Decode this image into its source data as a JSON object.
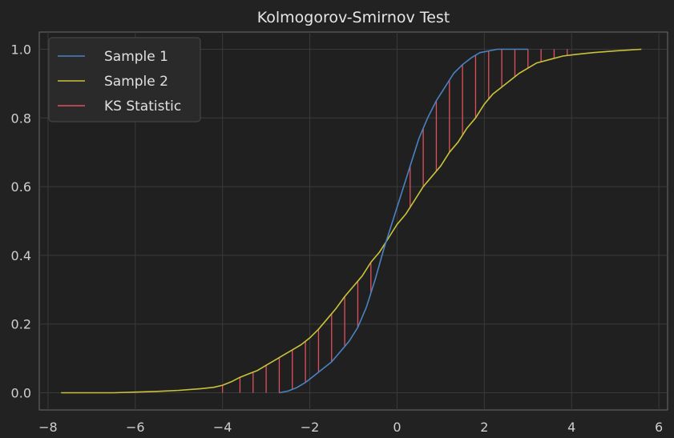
{
  "chart_data": {
    "type": "line",
    "title": "Kolmogorov-Smirnov Test",
    "xlabel": "",
    "ylabel": "",
    "xlim": [
      -8.2,
      6.2
    ],
    "ylim": [
      -0.05,
      1.05
    ],
    "x_ticks": [
      -8,
      -6,
      -4,
      -2,
      0,
      2,
      4,
      6
    ],
    "x_tick_labels": [
      "−8",
      "−6",
      "−4",
      "−2",
      "0",
      "2",
      "4",
      "6"
    ],
    "y_ticks": [
      0.0,
      0.2,
      0.4,
      0.6,
      0.8,
      1.0
    ],
    "y_tick_labels": [
      "0.0",
      "0.2",
      "0.4",
      "0.6",
      "0.8",
      "1.0"
    ],
    "grid": true,
    "legend_position": "top-left",
    "series": [
      {
        "name": "Sample 1",
        "color": "#4a82c4",
        "x": [
          -2.7,
          -2.5,
          -2.3,
          -2.1,
          -1.9,
          -1.7,
          -1.5,
          -1.3,
          -1.1,
          -0.9,
          -0.7,
          -0.5,
          -0.3,
          -0.1,
          0.1,
          0.3,
          0.5,
          0.7,
          0.9,
          1.1,
          1.3,
          1.5,
          1.7,
          1.9,
          2.1,
          2.3,
          2.5,
          2.7,
          3.0
        ],
        "y": [
          0.0,
          0.005,
          0.015,
          0.03,
          0.05,
          0.07,
          0.09,
          0.12,
          0.15,
          0.19,
          0.25,
          0.33,
          0.42,
          0.5,
          0.58,
          0.66,
          0.74,
          0.8,
          0.85,
          0.89,
          0.93,
          0.955,
          0.975,
          0.99,
          0.995,
          1.0,
          1.0,
          1.0,
          1.0
        ]
      },
      {
        "name": "Sample 2",
        "color": "#c9c23a",
        "x": [
          -7.7,
          -7.0,
          -6.5,
          -6.0,
          -5.5,
          -5.0,
          -4.5,
          -4.2,
          -4.0,
          -3.8,
          -3.6,
          -3.4,
          -3.2,
          -3.0,
          -2.8,
          -2.6,
          -2.4,
          -2.2,
          -2.0,
          -1.8,
          -1.6,
          -1.4,
          -1.2,
          -1.0,
          -0.8,
          -0.6,
          -0.4,
          -0.2,
          0.0,
          0.2,
          0.4,
          0.6,
          0.8,
          1.0,
          1.2,
          1.4,
          1.6,
          1.8,
          2.0,
          2.2,
          2.4,
          2.6,
          2.8,
          3.0,
          3.2,
          3.5,
          3.8,
          4.1,
          4.5,
          5.0,
          5.6
        ],
        "y": [
          0.0,
          0.0,
          0.0,
          0.002,
          0.004,
          0.007,
          0.012,
          0.016,
          0.022,
          0.032,
          0.045,
          0.055,
          0.065,
          0.08,
          0.095,
          0.11,
          0.125,
          0.14,
          0.16,
          0.185,
          0.215,
          0.245,
          0.28,
          0.31,
          0.34,
          0.38,
          0.41,
          0.45,
          0.49,
          0.52,
          0.56,
          0.6,
          0.63,
          0.66,
          0.7,
          0.73,
          0.77,
          0.8,
          0.84,
          0.87,
          0.89,
          0.91,
          0.93,
          0.945,
          0.96,
          0.97,
          0.98,
          0.985,
          0.99,
          0.995,
          1.0
        ]
      },
      {
        "name": "KS Statistic",
        "color": "#e0505a",
        "type": "vlines",
        "x": [
          -4.0,
          -3.6,
          -3.3,
          -3.0,
          -2.7,
          -2.4,
          -2.1,
          -1.8,
          -1.5,
          -1.2,
          -0.9,
          -0.6,
          0.3,
          0.6,
          0.9,
          1.2,
          1.5,
          1.8,
          2.1,
          2.4,
          2.7,
          3.0,
          3.3,
          3.6,
          3.9
        ]
      }
    ]
  }
}
